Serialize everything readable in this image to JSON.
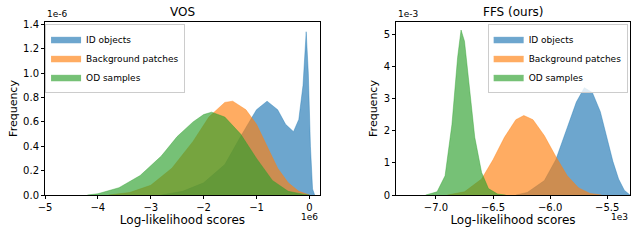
{
  "chart_data": [
    {
      "type": "area",
      "title": "VOS",
      "x_label": "Log-likelihood scores",
      "y_label": "Frequency",
      "annotations": [
        {
          "text": "1e-6",
          "axis": "y"
        },
        {
          "text": "1e6",
          "axis": "x"
        }
      ],
      "xlim": [
        -5,
        0.2
      ],
      "ylim": [
        0,
        1.42
      ],
      "xticks": [
        {
          "value": -5,
          "label": "−5"
        },
        {
          "value": -4,
          "label": "−4"
        },
        {
          "value": -3,
          "label": "−3"
        },
        {
          "value": -2,
          "label": "−2"
        },
        {
          "value": -1,
          "label": "−1"
        },
        0
      ],
      "yticks": [
        {
          "value": 0,
          "label": "0.0"
        },
        {
          "value": 0.2,
          "label": "0.2"
        },
        {
          "value": 0.4,
          "label": "0.4"
        },
        {
          "value": 0.6,
          "label": "0.6"
        },
        {
          "value": 0.8,
          "label": "0.8"
        },
        {
          "value": 1.0,
          "label": "1.0"
        },
        {
          "value": 1.2,
          "label": "1.2"
        },
        {
          "value": 1.4,
          "label": "1.4"
        }
      ],
      "legend": "upper left",
      "series": [
        {
          "name": "ID objects",
          "color": "#1f77b4",
          "x": [
            -2.8,
            -2.4,
            -2.0,
            -1.6,
            -1.3,
            -1.0,
            -0.8,
            -0.6,
            -0.45,
            -0.3,
            -0.2,
            -0.12,
            -0.06,
            -0.02,
            0.02,
            0.06,
            0.1
          ],
          "values": [
            0,
            0.03,
            0.1,
            0.25,
            0.48,
            0.7,
            0.77,
            0.7,
            0.58,
            0.52,
            0.62,
            0.9,
            1.34,
            1.0,
            0.4,
            0.05,
            0
          ]
        },
        {
          "name": "Background patches",
          "color": "#ff7f0e",
          "x": [
            -3.8,
            -3.4,
            -3.0,
            -2.6,
            -2.2,
            -1.9,
            -1.6,
            -1.45,
            -1.2,
            -1.0,
            -0.8,
            -0.6,
            -0.4,
            -0.2,
            0
          ],
          "values": [
            0,
            0.02,
            0.08,
            0.22,
            0.44,
            0.64,
            0.76,
            0.77,
            0.7,
            0.58,
            0.4,
            0.22,
            0.1,
            0.03,
            0
          ]
        },
        {
          "name": "OD samples",
          "color": "#2ca02c",
          "x": [
            -4.2,
            -4.0,
            -3.6,
            -3.2,
            -2.8,
            -2.5,
            -2.2,
            -2.0,
            -1.85,
            -1.6,
            -1.3,
            -1.0,
            -0.7,
            -0.4,
            -0.1,
            0
          ],
          "values": [
            0,
            0.01,
            0.06,
            0.16,
            0.32,
            0.48,
            0.6,
            0.66,
            0.68,
            0.64,
            0.5,
            0.3,
            0.12,
            0.03,
            0.005,
            0
          ]
        }
      ]
    },
    {
      "type": "area",
      "title": "FFS (ours)",
      "x_label": "Log-likelihood scores",
      "y_label": "Frequency",
      "annotations": [
        {
          "text": "1e-3",
          "axis": "y"
        },
        {
          "text": "1e3",
          "axis": "x"
        }
      ],
      "xlim": [
        -7.35,
        -5.3
      ],
      "ylim": [
        0,
        5.4
      ],
      "xticks": [
        {
          "value": -7.0,
          "label": "−7.0"
        },
        {
          "value": -6.5,
          "label": "−6.5"
        },
        {
          "value": -6.0,
          "label": "−6.0"
        },
        {
          "value": -5.5,
          "label": "−5.5"
        }
      ],
      "yticks": [
        0,
        1,
        2,
        3,
        4,
        5
      ],
      "legend": "upper right",
      "series": [
        {
          "name": "ID objects",
          "color": "#1f77b4",
          "x": [
            -6.3,
            -6.2,
            -6.05,
            -5.95,
            -5.85,
            -5.77,
            -5.7,
            -5.63,
            -5.56,
            -5.5,
            -5.45,
            -5.4,
            -5.35,
            -5.3
          ],
          "values": [
            0,
            0.08,
            0.45,
            1.1,
            2.1,
            2.9,
            3.35,
            3.2,
            2.6,
            1.8,
            1.05,
            0.5,
            0.15,
            0
          ]
        },
        {
          "name": "Background patches",
          "color": "#ff7f0e",
          "x": [
            -6.9,
            -6.75,
            -6.6,
            -6.5,
            -6.4,
            -6.3,
            -6.23,
            -6.15,
            -6.05,
            -5.95,
            -5.85,
            -5.75,
            -5.65,
            -5.55
          ],
          "values": [
            0,
            0.1,
            0.5,
            1.1,
            1.8,
            2.35,
            2.48,
            2.35,
            1.85,
            1.2,
            0.6,
            0.22,
            0.05,
            0
          ]
        },
        {
          "name": "OD samples",
          "color": "#2ca02c",
          "x": [
            -7.09,
            -6.99,
            -6.92,
            -6.86,
            -6.81,
            -6.78,
            -6.75,
            -6.71,
            -6.66,
            -6.6,
            -6.54,
            -6.46,
            -6.39
          ],
          "values": [
            0,
            0.1,
            0.6,
            2.2,
            4.3,
            5.15,
            4.8,
            3.4,
            1.8,
            0.7,
            0.2,
            0.03,
            0
          ]
        }
      ]
    }
  ]
}
